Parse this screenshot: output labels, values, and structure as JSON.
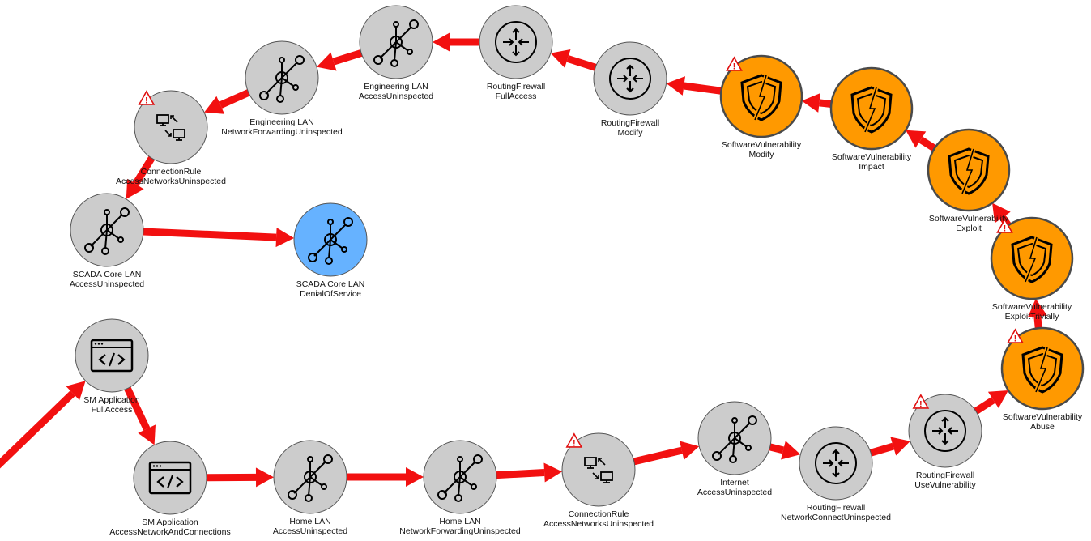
{
  "colors": {
    "edge": "#f21010",
    "node_default": "#cccccc",
    "node_vulnerability": "#ff9900",
    "node_target": "#66b2ff",
    "node_stroke": "#555555",
    "warning": "#e01010"
  },
  "nodes": [
    {
      "id": "eng-lan-access",
      "icon": "network-icon",
      "color": "default",
      "line1": "Engineering LAN",
      "line2": "AccessUninspected",
      "warning": false
    },
    {
      "id": "rf-fullaccess",
      "icon": "router-icon",
      "color": "default",
      "line1": "RoutingFirewall",
      "line2": "FullAccess",
      "warning": false
    },
    {
      "id": "eng-lan-forward",
      "icon": "network-icon",
      "color": "default",
      "line1": "Engineering LAN",
      "line2": "NetworkForwardingUninspected",
      "warning": false
    },
    {
      "id": "rf-modify",
      "icon": "router-icon",
      "color": "default",
      "line1": "RoutingFirewall",
      "line2": "Modify",
      "warning": false
    },
    {
      "id": "sv-modify",
      "icon": "shield-icon",
      "color": "vulnerability",
      "line1": "SoftwareVulnerability",
      "line2": "Modify",
      "warning": true
    },
    {
      "id": "sv-impact",
      "icon": "shield-icon",
      "color": "vulnerability",
      "line1": "SoftwareVulnerability",
      "line2": "Impact",
      "warning": false
    },
    {
      "id": "cr-top",
      "icon": "connection-icon",
      "color": "default",
      "line1": "ConnectionRule",
      "line2": "AccessNetworksUninspected",
      "warning": true
    },
    {
      "id": "sv-exploit",
      "icon": "shield-icon",
      "color": "vulnerability",
      "line1": "SoftwareVulnerability",
      "line2": "Exploit",
      "warning": false
    },
    {
      "id": "scada-access",
      "icon": "network-icon",
      "color": "default",
      "line1": "SCADA Core LAN",
      "line2": "AccessUninspected",
      "warning": false
    },
    {
      "id": "scada-dos",
      "icon": "network-icon",
      "color": "target",
      "line1": "SCADA Core LAN",
      "line2": "DenialOfService",
      "warning": false
    },
    {
      "id": "sv-exploit-trivially",
      "icon": "shield-icon",
      "color": "vulnerability",
      "line1": "SoftwareVulnerability",
      "line2": "ExploitTrivially",
      "warning": true
    },
    {
      "id": "sm-app-full",
      "icon": "code-icon",
      "color": "default",
      "line1": "SM Application",
      "line2": "FullAccess",
      "warning": false
    },
    {
      "id": "sv-abuse",
      "icon": "shield-icon",
      "color": "vulnerability",
      "line1": "SoftwareVulnerability",
      "line2": "Abuse",
      "warning": true
    },
    {
      "id": "internet",
      "icon": "network-icon",
      "color": "default",
      "line1": "Internet",
      "line2": "AccessUninspected",
      "warning": false
    },
    {
      "id": "rf-usevuln",
      "icon": "router-icon",
      "color": "default",
      "line1": "RoutingFirewall",
      "line2": "UseVulnerability",
      "warning": true
    },
    {
      "id": "cr-bottom",
      "icon": "connection-icon",
      "color": "default",
      "line1": "ConnectionRule",
      "line2": "AccessNetworksUninspected",
      "warning": true
    },
    {
      "id": "rf-netconnect",
      "icon": "router-icon",
      "color": "default",
      "line1": "RoutingFirewall",
      "line2": "NetworkConnectUninspected",
      "warning": false
    },
    {
      "id": "sm-app-anc",
      "icon": "code-icon",
      "color": "default",
      "line1": "SM Application",
      "line2": "AccessNetworkAndConnections",
      "warning": false
    },
    {
      "id": "home-lan-access",
      "icon": "network-icon",
      "color": "default",
      "line1": "Home LAN",
      "line2": "AccessUninspected",
      "warning": false
    },
    {
      "id": "home-lan-forward",
      "icon": "network-icon",
      "color": "default",
      "line1": "Home LAN",
      "line2": "NetworkForwardingUninspected",
      "warning": false
    }
  ],
  "edges": [
    [
      "entry",
      "sm-app-full"
    ],
    [
      "sm-app-full",
      "sm-app-anc"
    ],
    [
      "sm-app-anc",
      "home-lan-access"
    ],
    [
      "home-lan-access",
      "home-lan-forward"
    ],
    [
      "home-lan-forward",
      "cr-bottom"
    ],
    [
      "cr-bottom",
      "internet"
    ],
    [
      "internet",
      "rf-netconnect"
    ],
    [
      "rf-netconnect",
      "rf-usevuln"
    ],
    [
      "rf-usevuln",
      "sv-abuse"
    ],
    [
      "sv-abuse",
      "sv-exploit-trivially"
    ],
    [
      "sv-exploit-trivially",
      "sv-exploit"
    ],
    [
      "sv-exploit",
      "sv-impact"
    ],
    [
      "sv-impact",
      "sv-modify"
    ],
    [
      "sv-modify",
      "rf-modify"
    ],
    [
      "rf-modify",
      "rf-fullaccess"
    ],
    [
      "rf-fullaccess",
      "eng-lan-access"
    ],
    [
      "eng-lan-access",
      "eng-lan-forward"
    ],
    [
      "eng-lan-forward",
      "cr-top"
    ],
    [
      "cr-top",
      "scada-access"
    ],
    [
      "scada-access",
      "scada-dos"
    ]
  ]
}
